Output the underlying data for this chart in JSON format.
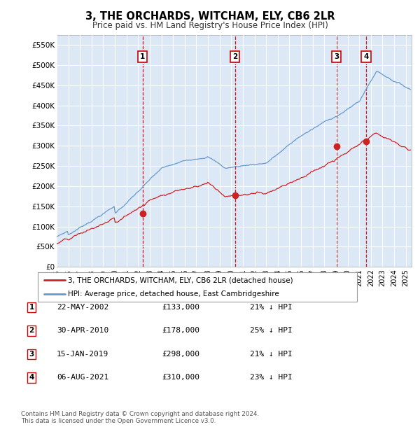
{
  "title": "3, THE ORCHARDS, WITCHAM, ELY, CB6 2LR",
  "subtitle": "Price paid vs. HM Land Registry's House Price Index (HPI)",
  "ylim": [
    0,
    575000
  ],
  "yticks": [
    0,
    50000,
    100000,
    150000,
    200000,
    250000,
    300000,
    350000,
    400000,
    450000,
    500000,
    550000
  ],
  "ytick_labels": [
    "£0",
    "£50K",
    "£100K",
    "£150K",
    "£200K",
    "£250K",
    "£300K",
    "£350K",
    "£400K",
    "£450K",
    "£500K",
    "£550K"
  ],
  "hpi_color": "#6699cc",
  "hpi_fill_color": "#dce8f5",
  "price_color": "#cc2222",
  "dashed_color": "#cc0000",
  "background_color": "#dce8f5",
  "grid_color": "#ffffff",
  "transactions": [
    {
      "label": "1",
      "date": 2002.38,
      "price": 133000
    },
    {
      "label": "2",
      "date": 2010.33,
      "price": 178000
    },
    {
      "label": "3",
      "date": 2019.04,
      "price": 298000
    },
    {
      "label": "4",
      "date": 2021.59,
      "price": 310000
    }
  ],
  "legend_entries": [
    "3, THE ORCHARDS, WITCHAM, ELY, CB6 2LR (detached house)",
    "HPI: Average price, detached house, East Cambridgeshire"
  ],
  "table_rows": [
    [
      "1",
      "22-MAY-2002",
      "£133,000",
      "21% ↓ HPI"
    ],
    [
      "2",
      "30-APR-2010",
      "£178,000",
      "25% ↓ HPI"
    ],
    [
      "3",
      "15-JAN-2019",
      "£298,000",
      "21% ↓ HPI"
    ],
    [
      "4",
      "06-AUG-2021",
      "£310,000",
      "23% ↓ HPI"
    ]
  ],
  "footnote": "Contains HM Land Registry data © Crown copyright and database right 2024.\nThis data is licensed under the Open Government Licence v3.0.",
  "xmin": 1995.0,
  "xmax": 2025.5
}
